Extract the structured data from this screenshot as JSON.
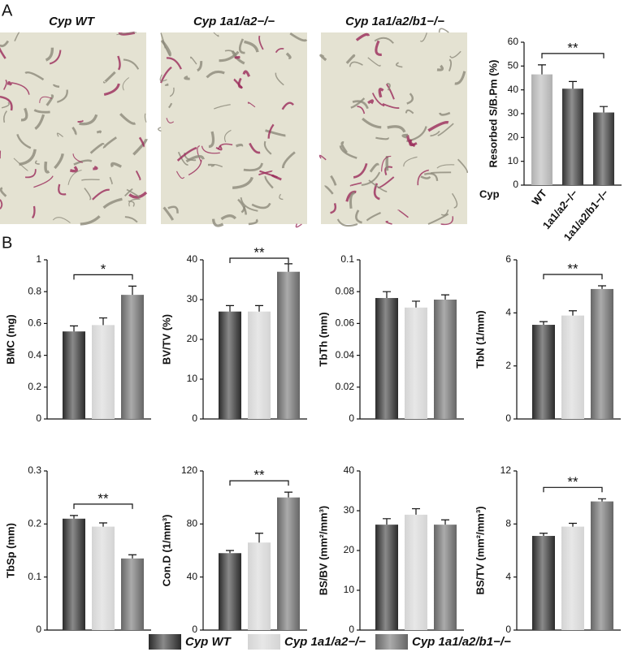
{
  "panel_labels": [
    "A",
    "B"
  ],
  "images": [
    {
      "caption": "Cyp WT"
    },
    {
      "caption": "Cyp 1a1/a2−/−"
    },
    {
      "caption": "Cyp 1a1/a2/b1−/−"
    }
  ],
  "legend": [
    {
      "name": "Cyp WT",
      "color": "#2a2a2a"
    },
    {
      "name": "Cyp 1a1/a2−/−",
      "color": "#d4d4d4"
    },
    {
      "name": "Cyp 1a1/a2/b1−/−",
      "color": "#666666"
    }
  ],
  "chart_data": [
    {
      "type": "bar",
      "ylabel": "Resorbed S/B.Pm (%)",
      "category_prefix": "Cyp",
      "categories": [
        "WT",
        "1a1/a2−/−",
        "1a1/a2/b1−/−"
      ],
      "values": [
        46.5,
        40.5,
        30.5
      ],
      "errors": [
        4,
        3,
        2.5
      ],
      "colors": [
        "#b0b0b0",
        "#333333",
        "#333333"
      ],
      "ylim": [
        0,
        60
      ],
      "yticks": [
        0,
        10,
        20,
        30,
        40,
        50,
        60
      ],
      "annotation": "**"
    },
    {
      "type": "bar",
      "ylabel": "BMC (mg)",
      "categories": [
        null,
        null,
        null
      ],
      "values": [
        0.55,
        0.59,
        0.78
      ],
      "errors": [
        0.035,
        0.045,
        0.055
      ],
      "ylim": [
        0,
        1
      ],
      "yticks": [
        0,
        0.2,
        0.4,
        0.6,
        0.8,
        1
      ],
      "annotation": "*"
    },
    {
      "type": "bar",
      "ylabel": "BV/TV (%)",
      "categories": [
        null,
        null,
        null
      ],
      "values": [
        27,
        27,
        37
      ],
      "errors": [
        1.5,
        1.5,
        2
      ],
      "ylim": [
        0,
        40
      ],
      "yticks": [
        0,
        10,
        20,
        30,
        40
      ],
      "annotation": "**"
    },
    {
      "type": "bar",
      "ylabel": "TbTh (mm)",
      "categories": [
        null,
        null,
        null
      ],
      "values": [
        0.076,
        0.07,
        0.075
      ],
      "errors": [
        0.004,
        0.004,
        0.003
      ],
      "ylim": [
        0,
        0.1
      ],
      "yticks": [
        0,
        0.02,
        0.04,
        0.06,
        0.08,
        0.1
      ]
    },
    {
      "type": "bar",
      "ylabel": "TbN (1/mm)",
      "categories": [
        null,
        null,
        null
      ],
      "values": [
        3.55,
        3.9,
        4.9
      ],
      "errors": [
        0.12,
        0.18,
        0.12
      ],
      "ylim": [
        0,
        6
      ],
      "yticks": [
        0,
        2,
        4,
        6
      ],
      "annotation": "**"
    },
    {
      "type": "bar",
      "ylabel": "TbSp (mm)",
      "categories": [
        null,
        null,
        null
      ],
      "values": [
        0.21,
        0.195,
        0.135
      ],
      "errors": [
        0.006,
        0.007,
        0.007
      ],
      "ylim": [
        0,
        0.3
      ],
      "yticks": [
        0,
        0.1,
        0.2,
        0.3
      ],
      "annotation": "**"
    },
    {
      "type": "bar",
      "ylabel": "Con.D (1/mm³)",
      "categories": [
        null,
        null,
        null
      ],
      "values": [
        58,
        66,
        100
      ],
      "errors": [
        2,
        7,
        4
      ],
      "ylim": [
        0,
        120
      ],
      "yticks": [
        0,
        40,
        80,
        120
      ],
      "annotation": "**"
    },
    {
      "type": "bar",
      "ylabel": "BS/BV (mm²/mm³)",
      "categories": [
        null,
        null,
        null
      ],
      "values": [
        26.5,
        29,
        26.5
      ],
      "errors": [
        1.5,
        1.5,
        1.2
      ],
      "ylim": [
        0,
        40
      ],
      "yticks": [
        0,
        10,
        20,
        30,
        40
      ]
    },
    {
      "type": "bar",
      "ylabel": "BS/TV (mm²/mm³)",
      "categories": [
        null,
        null,
        null
      ],
      "values": [
        7.1,
        7.8,
        9.7
      ],
      "errors": [
        0.2,
        0.25,
        0.2
      ],
      "ylim": [
        0,
        12
      ],
      "yticks": [
        0,
        4,
        8,
        12
      ],
      "annotation": "**"
    }
  ]
}
